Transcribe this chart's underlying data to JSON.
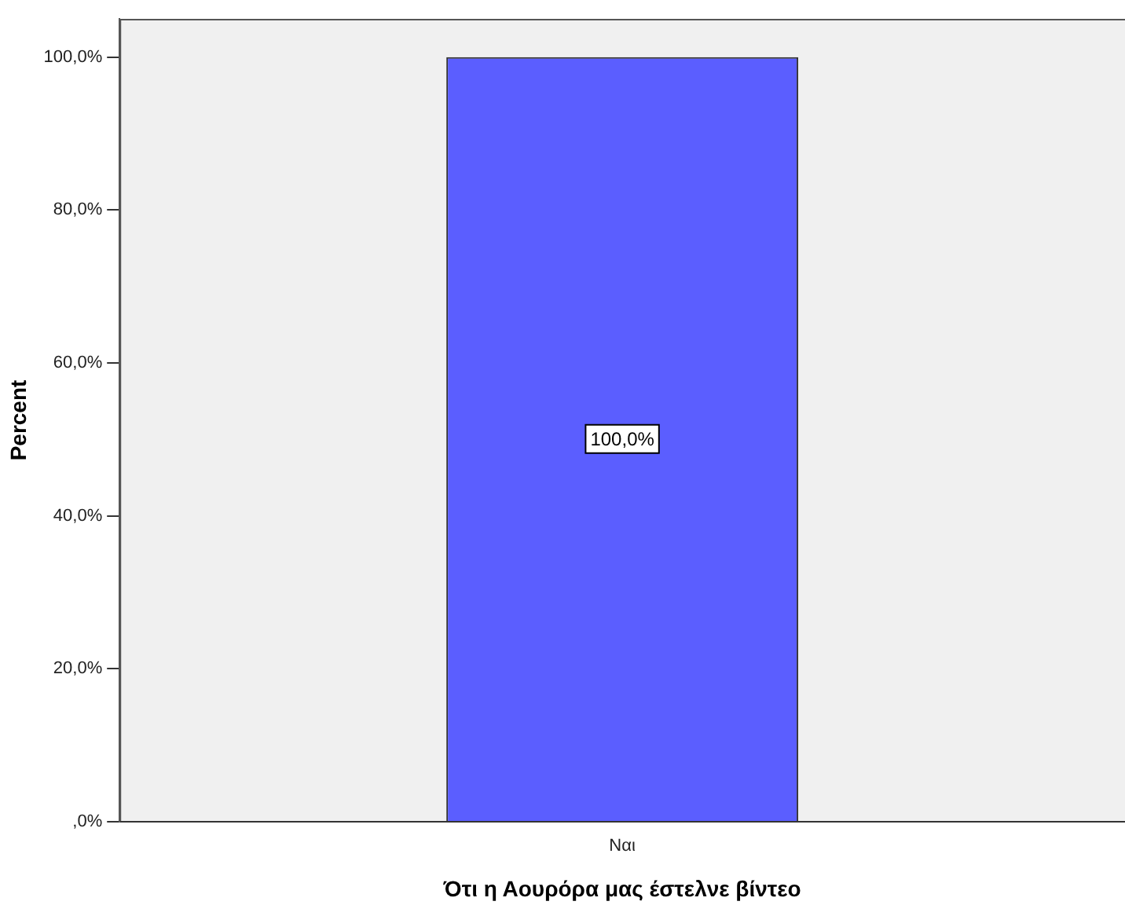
{
  "chart_data": {
    "type": "bar",
    "xlabel": "Ότι η Αουρόρα μας έστελνε βίντεο",
    "ylabel": "Percent",
    "categories": [
      "Ναι"
    ],
    "values": [
      100
    ],
    "color": "#5b5eff",
    "value_labels": [
      "100,0%"
    ],
    "ylim": [
      0,
      105
    ],
    "yticks": [
      {
        "value": 0,
        "label": ",0%"
      },
      {
        "value": 20,
        "label": "20,0%"
      },
      {
        "value": 40,
        "label": "40,0%"
      },
      {
        "value": 60,
        "label": "60,0%"
      },
      {
        "value": 80,
        "label": "80,0%"
      },
      {
        "value": 100,
        "label": "100,0%"
      }
    ],
    "grid": false,
    "legend": false
  }
}
